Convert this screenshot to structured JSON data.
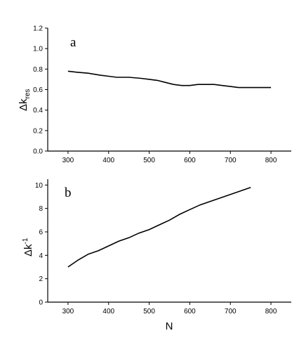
{
  "chart_data": [
    {
      "type": "line",
      "panel_label": "a",
      "title": "",
      "xlabel": "",
      "ylabel": "Δk",
      "ylabel_subscript": "res",
      "xlim": [
        250,
        850
      ],
      "ylim": [
        0,
        1.2
      ],
      "xticks": [
        300,
        400,
        500,
        600,
        700,
        800
      ],
      "yticks": [
        "0.0",
        "0.2",
        "0.4",
        "0.6",
        "0.8",
        "1.0",
        "1.2"
      ],
      "series": [
        {
          "x": [
            300,
            320,
            350,
            380,
            400,
            420,
            450,
            480,
            500,
            520,
            540,
            560,
            580,
            600,
            620,
            640,
            660,
            680,
            700,
            720,
            740,
            760,
            780,
            800
          ],
          "values": [
            0.78,
            0.77,
            0.76,
            0.74,
            0.73,
            0.72,
            0.72,
            0.71,
            0.7,
            0.69,
            0.67,
            0.65,
            0.64,
            0.64,
            0.65,
            0.65,
            0.65,
            0.64,
            0.63,
            0.62,
            0.62,
            0.62,
            0.62,
            0.62
          ]
        }
      ]
    },
    {
      "type": "line",
      "panel_label": "b",
      "title": "",
      "xlabel": "N",
      "ylabel": "Δk",
      "ylabel_superscript": "-1",
      "xlim": [
        250,
        850
      ],
      "ylim": [
        0,
        10.5
      ],
      "xticks": [
        300,
        400,
        500,
        600,
        700,
        800
      ],
      "yticks": [
        "0",
        "2",
        "4",
        "6",
        "8",
        "10"
      ],
      "series": [
        {
          "x": [
            300,
            325,
            350,
            375,
            400,
            425,
            450,
            475,
            500,
            525,
            550,
            575,
            600,
            625,
            650,
            675,
            700,
            725,
            750
          ],
          "values": [
            3.0,
            3.6,
            4.1,
            4.4,
            4.8,
            5.2,
            5.5,
            5.9,
            6.2,
            6.6,
            7.0,
            7.5,
            7.9,
            8.3,
            8.6,
            8.9,
            9.2,
            9.5,
            9.8
          ]
        }
      ]
    }
  ]
}
